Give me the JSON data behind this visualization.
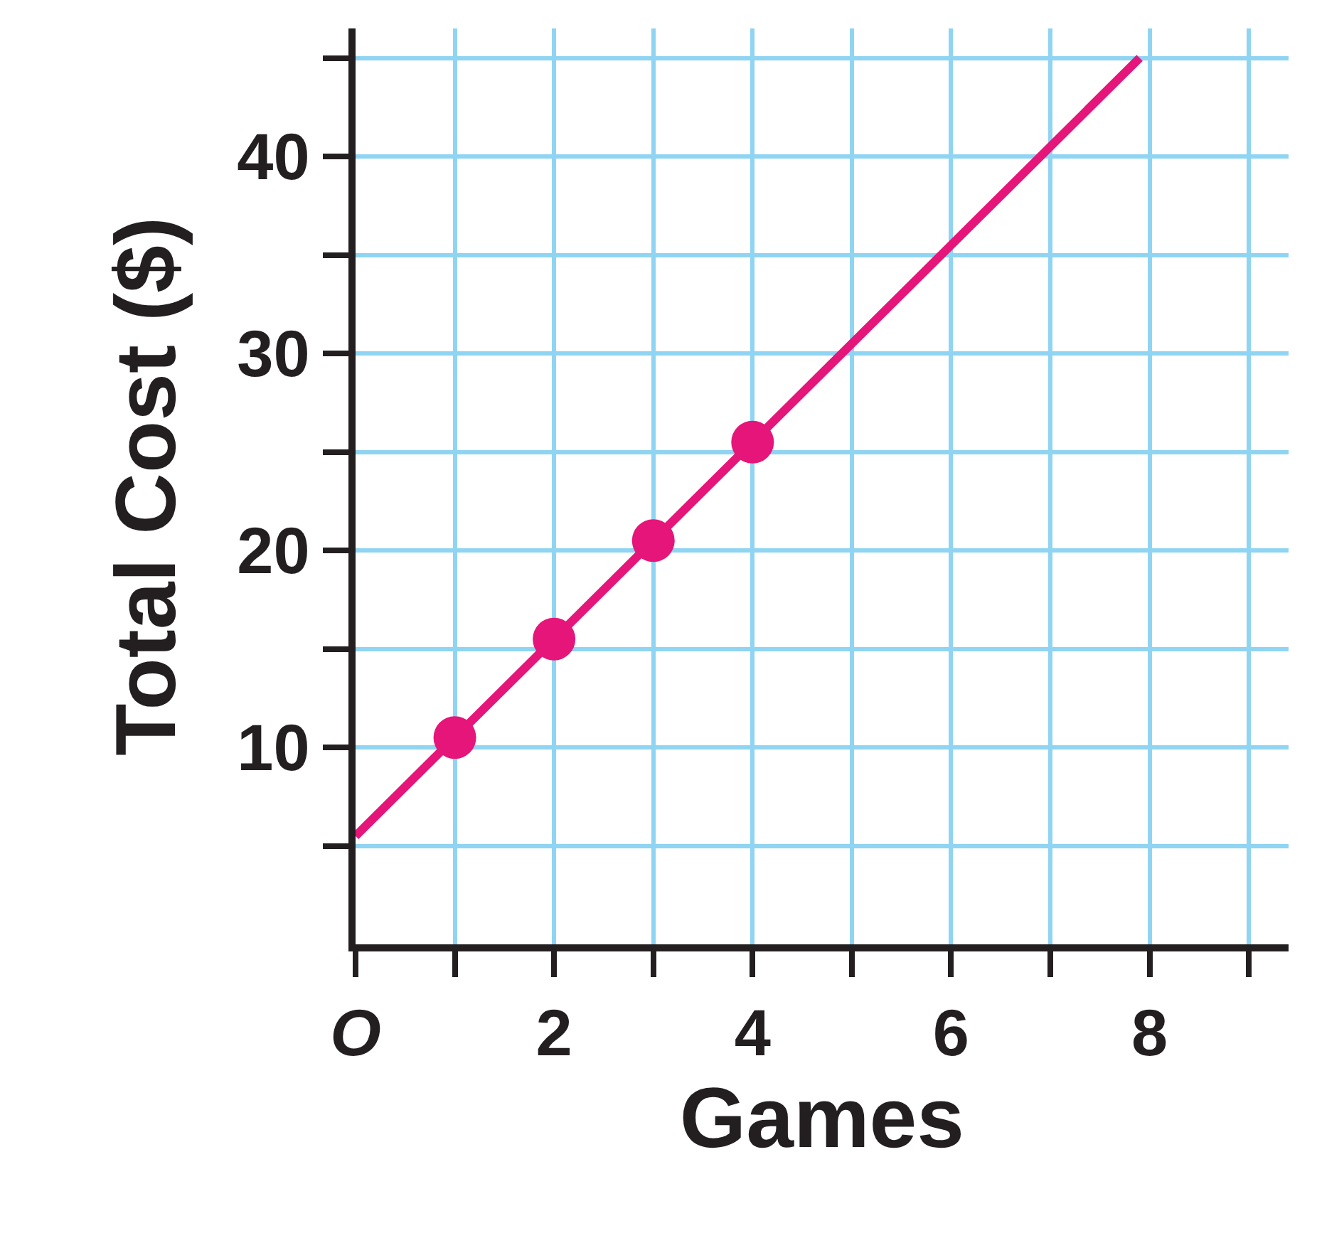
{
  "chart_data": {
    "type": "line",
    "xlabel": "Games",
    "ylabel": "Total Cost ($)",
    "series": [
      {
        "color": "#e5157a",
        "x": [
          0,
          7.9
        ],
        "values": [
          5.5,
          45
        ],
        "marker": "none"
      },
      {
        "type": "scatter",
        "color": "#e5157a",
        "x": [
          1,
          2,
          3,
          4
        ],
        "values": [
          10.5,
          15.5,
          20.5,
          25.5
        ],
        "marker": "circle"
      }
    ],
    "xlim": [
      0,
      9.4
    ],
    "ylim": [
      0,
      46.5
    ],
    "xticks": [
      {
        "value": 0,
        "label": "O"
      },
      {
        "value": 1,
        "label": null
      },
      2,
      {
        "value": 3,
        "label": null
      },
      4,
      {
        "value": 5,
        "label": null
      },
      6,
      {
        "value": 7,
        "label": null
      },
      8,
      {
        "value": 9,
        "label": null
      }
    ],
    "yticks": [
      {
        "value": 5,
        "label": null
      },
      10,
      {
        "value": 15,
        "label": null
      },
      20,
      {
        "value": 25,
        "label": null
      },
      30,
      {
        "value": 35,
        "label": null
      },
      40,
      {
        "value": 45,
        "label": null
      }
    ],
    "grid": true
  }
}
